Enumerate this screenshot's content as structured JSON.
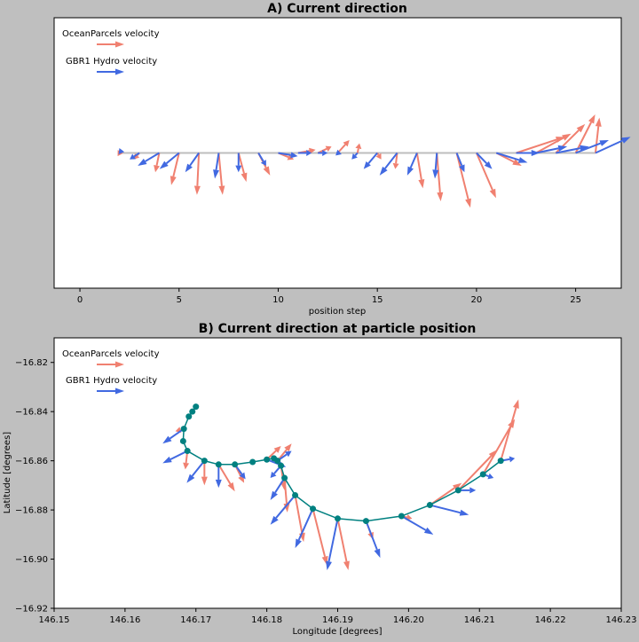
{
  "colors": {
    "ocean": "#f08070",
    "hydro": "#4169e1",
    "track": "#008080",
    "baseline": "#bebebe"
  },
  "chart_data": [
    {
      "type": "quiver",
      "title": "A) Current direction",
      "xlabel": "position step",
      "ylabel": "",
      "xlim": [
        -1.3,
        27.3
      ],
      "ylim": [
        -1,
        1
      ],
      "xticks": [
        "0",
        "5",
        "10",
        "15",
        "20",
        "25"
      ],
      "xtick_values": [
        0,
        5,
        10,
        15,
        20,
        25
      ],
      "legend": [
        "OceanParcels velocity",
        "GBR1 Hydro velocity"
      ],
      "legend_position": "top-left",
      "series": [
        {
          "name": "OceanParcels velocity",
          "x": [
            2,
            3,
            4,
            5,
            6,
            7,
            8,
            9,
            10,
            11,
            12,
            13,
            14,
            15,
            16,
            17,
            18,
            19,
            20,
            21,
            22,
            23,
            24,
            25,
            26
          ],
          "u": [
            -0.1,
            -0.3,
            -0.2,
            -0.4,
            -0.1,
            0.2,
            0.4,
            0.6,
            0.8,
            0.9,
            0.7,
            0.6,
            0.1,
            0.2,
            -0.1,
            0.3,
            0.2,
            0.7,
            1.0,
            1.3,
            2.5,
            1.8,
            1.5,
            1.0,
            0.2
          ],
          "v": [
            -0.05,
            -0.1,
            -0.3,
            -0.5,
            -0.65,
            -0.65,
            -0.45,
            -0.35,
            -0.1,
            0.05,
            0.1,
            0.2,
            0.15,
            -0.1,
            -0.25,
            -0.55,
            -0.75,
            -0.85,
            -0.7,
            -0.2,
            0.25,
            0.3,
            0.45,
            0.6,
            0.55
          ]
        },
        {
          "name": "GBR1 Hydro velocity",
          "x": [
            2,
            3,
            4,
            5,
            6,
            7,
            8,
            9,
            10,
            11,
            12,
            13,
            14,
            15,
            16,
            17,
            18,
            19,
            20,
            21,
            22,
            23,
            24,
            25,
            26
          ],
          "u": [
            -0.05,
            -0.5,
            -1.1,
            -1.0,
            -0.7,
            -0.2,
            0.0,
            0.4,
            1.0,
            0.7,
            0.5,
            0.2,
            -0.3,
            -0.7,
            -0.9,
            -0.5,
            -0.1,
            0.4,
            0.8,
            1.6,
            1.2,
            1.6,
            1.7,
            1.7,
            1.8
          ],
          "v": [
            -0.02,
            -0.1,
            -0.2,
            -0.25,
            -0.3,
            -0.4,
            -0.3,
            -0.2,
            -0.05,
            0.0,
            0.0,
            -0.02,
            -0.1,
            -0.25,
            -0.35,
            -0.35,
            -0.4,
            -0.3,
            -0.25,
            -0.15,
            0.0,
            0.1,
            0.1,
            0.2,
            0.25
          ]
        }
      ]
    },
    {
      "type": "quiver-track",
      "title": "B) Current direction at particle position",
      "xlabel": "Longitude [degrees]",
      "ylabel": "Latitude [degrees]",
      "xlim": [
        146.15,
        146.23
      ],
      "ylim": [
        -16.92,
        -16.81
      ],
      "xticks": [
        "146.15",
        "146.16",
        "146.17",
        "146.18",
        "146.19",
        "146.20",
        "146.21",
        "146.22",
        "146.23"
      ],
      "xtick_values": [
        146.15,
        146.16,
        146.17,
        146.18,
        146.19,
        146.2,
        146.21,
        146.22,
        146.23
      ],
      "yticks": [
        "−16.82",
        "−16.84",
        "−16.86",
        "−16.88",
        "−16.90",
        "−16.92"
      ],
      "ytick_values": [
        -16.82,
        -16.84,
        -16.86,
        -16.88,
        -16.9,
        -16.92
      ],
      "legend": [
        "OceanParcels velocity",
        "GBR1 Hydro velocity"
      ],
      "legend_position": "top-left",
      "track": {
        "lon": [
          146.17,
          146.1695,
          146.169,
          146.1683,
          146.1682,
          146.1688,
          146.1712,
          146.1732,
          146.1755,
          146.178,
          146.18,
          146.181,
          146.1815,
          146.182,
          146.1825,
          146.184,
          146.1865,
          146.19,
          146.194,
          146.199,
          146.203,
          146.207,
          146.2105,
          146.213
        ],
        "lat": [
          -16.838,
          -16.84,
          -16.842,
          -16.847,
          -16.852,
          -16.856,
          -16.86,
          -16.8615,
          -16.8615,
          -16.8605,
          -16.8595,
          -16.859,
          -16.86,
          -16.862,
          -16.867,
          -16.874,
          -16.8795,
          -16.8835,
          -16.8845,
          -16.8825,
          -16.878,
          -16.872,
          -16.8655,
          -16.86
        ]
      },
      "series": [
        {
          "name": "OceanParcels velocity",
          "x": [
            146.1683,
            146.1688,
            146.1712,
            146.1732,
            146.1755,
            146.18,
            146.1815,
            146.182,
            146.1825,
            146.184,
            146.1865,
            146.19,
            146.194,
            146.199,
            146.203,
            146.207,
            146.2105,
            146.213
          ],
          "y": [
            -16.847,
            -16.856,
            -16.86,
            -16.8615,
            -16.8615,
            -16.8595,
            -16.86,
            -16.862,
            -16.867,
            -16.874,
            -16.8795,
            -16.8835,
            -16.8845,
            -16.8825,
            -16.878,
            -16.872,
            -16.8655,
            -16.86
          ],
          "dx": [
            -0.0012,
            -0.0003,
            0.0,
            0.0023,
            0.0013,
            0.002,
            0.002,
            0.0005,
            0.0004,
            0.0012,
            0.002,
            0.0015,
            0.001,
            0.0015,
            0.0045,
            0.0055,
            0.0045,
            0.0025
          ],
          "dy": [
            -0.001,
            -0.0075,
            -0.01,
            -0.011,
            -0.0075,
            0.0055,
            0.007,
            -0.01,
            -0.014,
            -0.019,
            -0.023,
            -0.021,
            -0.0075,
            -0.001,
            0.009,
            0.0165,
            0.0225,
            0.025
          ]
        },
        {
          "name": "GBR1 Hydro velocity",
          "x": [
            146.1683,
            146.1688,
            146.1712,
            146.1732,
            146.1755,
            146.18,
            146.1815,
            146.182,
            146.1825,
            146.184,
            146.1865,
            146.19,
            146.194,
            146.199,
            146.203,
            146.207,
            146.2105,
            146.213
          ],
          "y": [
            -16.847,
            -16.856,
            -16.86,
            -16.8615,
            -16.8615,
            -16.8595,
            -16.86,
            -16.862,
            -16.867,
            -16.874,
            -16.8795,
            -16.8835,
            -16.8845,
            -16.8825,
            -16.878,
            -16.872,
            -16.8655,
            -16.86
          ],
          "dx": [
            -0.003,
            -0.0035,
            -0.0025,
            0.0,
            0.0015,
            0.0027,
            0.002,
            -0.0015,
            -0.002,
            -0.0035,
            -0.0025,
            -0.0015,
            0.002,
            0.0045,
            0.0055,
            0.0025,
            0.0015,
            0.002
          ],
          "dy": [
            -0.006,
            -0.005,
            -0.009,
            -0.0095,
            -0.006,
            -0.003,
            0.004,
            -0.005,
            -0.009,
            -0.012,
            -0.016,
            -0.021,
            -0.015,
            -0.0075,
            -0.004,
            0.0,
            -0.0015,
            0.001
          ]
        }
      ]
    }
  ]
}
